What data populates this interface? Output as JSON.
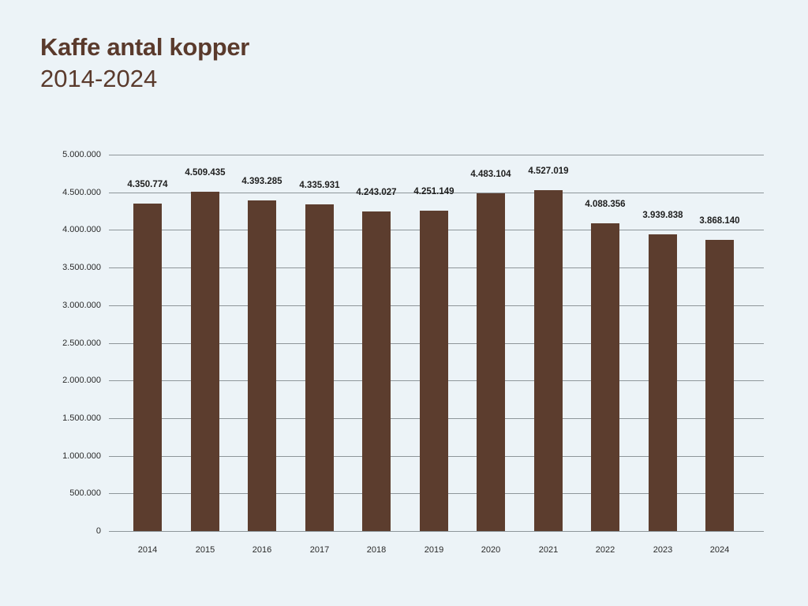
{
  "header": {
    "title": "Kaffe antal kopper",
    "subtitle": "2014-2024"
  },
  "colors": {
    "background": "#ecf3f7",
    "bar": "#5c3d2e",
    "title": "#5a3a2c",
    "gridline": "#8e969a"
  },
  "chart_data": {
    "type": "bar",
    "title": "Kaffe antal kopper",
    "subtitle": "2014-2024",
    "xlabel": "",
    "ylabel": "",
    "categories": [
      "2014",
      "2015",
      "2016",
      "2017",
      "2018",
      "2019",
      "2020",
      "2021",
      "2022",
      "2023",
      "2024"
    ],
    "values": [
      4350774,
      4509435,
      4393285,
      4335931,
      4243027,
      4251149,
      4483104,
      4527019,
      4088356,
      3939838,
      3868140
    ],
    "value_labels": [
      "4.350.774",
      "4.509.435",
      "4.393.285",
      "4.335.931",
      "4.243.027",
      "4.251.149",
      "4.483.104",
      "4.527.019",
      "4.088.356",
      "3.939.838",
      "3.868.140"
    ],
    "ylim": [
      0,
      5000000
    ],
    "yticks": [
      0,
      500000,
      1000000,
      1500000,
      2000000,
      2500000,
      3000000,
      3500000,
      4000000,
      4500000,
      5000000
    ],
    "ytick_labels": [
      "0",
      "500.000",
      "1.000.000",
      "1.500.000",
      "2.000.000",
      "2.500.000",
      "3.000.000",
      "3.500.000",
      "4.000.000",
      "4.500.000",
      "5.000.000"
    ],
    "grid": true,
    "legend": null
  }
}
